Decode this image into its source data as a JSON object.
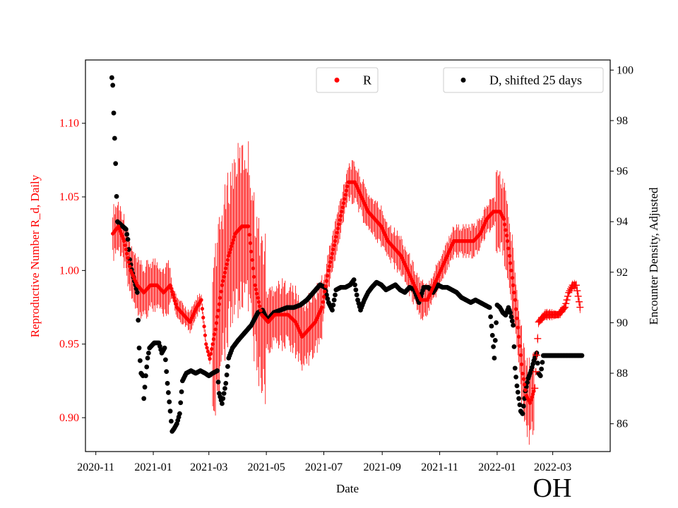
{
  "chart_data": {
    "type": "scatter",
    "xlabel": "Date",
    "ylabel_left": "Reproductive Number R_d, Daily",
    "ylabel_right": "Encounter Density, Adjusted",
    "state_label": "OH",
    "colors": {
      "R": "#ff0000",
      "D": "#000000",
      "axis": "#000000"
    },
    "x_range": [
      "2020-10-21",
      "2022-05-01"
    ],
    "x_ticks": [
      "2020-11",
      "2021-01",
      "2021-03",
      "2021-05",
      "2021-07",
      "2021-09",
      "2021-11",
      "2022-01",
      "2022-03"
    ],
    "y_left_range": [
      0.877,
      1.143
    ],
    "y_left_ticks": [
      "0.90",
      "0.95",
      "1.00",
      "1.05",
      "1.10"
    ],
    "y_right_range": [
      84.9,
      100.4
    ],
    "y_right_ticks": [
      "86",
      "88",
      "90",
      "92",
      "94",
      "96",
      "98",
      "100"
    ],
    "legend": [
      {
        "name": "R",
        "position": "top-center"
      },
      {
        "name": "D, shifted 25 days",
        "position": "top-right"
      }
    ],
    "series_R_points": [
      [
        "2020-11-19",
        1.025
      ],
      [
        "2020-11-25",
        1.03
      ],
      [
        "2020-12-01",
        1.02
      ],
      [
        "2020-12-08",
        1.0
      ],
      [
        "2020-12-15",
        0.99
      ],
      [
        "2020-12-22",
        0.985
      ],
      [
        "2020-12-29",
        0.99
      ],
      [
        "2021-01-05",
        0.99
      ],
      [
        "2021-01-12",
        0.985
      ],
      [
        "2021-01-19",
        0.99
      ],
      [
        "2021-01-26",
        0.975
      ],
      [
        "2021-02-02",
        0.97
      ],
      [
        "2021-02-09",
        0.965
      ],
      [
        "2021-02-16",
        0.975
      ],
      [
        "2021-02-21",
        0.98
      ],
      [
        "2021-02-26",
        0.95
      ],
      [
        "2021-03-02",
        0.94
      ],
      [
        "2021-03-08",
        0.96
      ],
      [
        "2021-03-15",
        0.99
      ],
      [
        "2021-03-22",
        1.01
      ],
      [
        "2021-03-29",
        1.025
      ],
      [
        "2021-04-05",
        1.03
      ],
      [
        "2021-04-12",
        1.03
      ],
      [
        "2021-04-19",
        0.99
      ],
      [
        "2021-04-26",
        0.97
      ],
      [
        "2021-05-03",
        0.965
      ],
      [
        "2021-05-10",
        0.97
      ],
      [
        "2021-05-17",
        0.97
      ],
      [
        "2021-05-24",
        0.97
      ],
      [
        "2021-06-01",
        0.965
      ],
      [
        "2021-06-08",
        0.955
      ],
      [
        "2021-06-15",
        0.96
      ],
      [
        "2021-06-22",
        0.965
      ],
      [
        "2021-06-29",
        0.975
      ],
      [
        "2021-07-06",
        1.0
      ],
      [
        "2021-07-13",
        1.02
      ],
      [
        "2021-07-20",
        1.04
      ],
      [
        "2021-07-27",
        1.06
      ],
      [
        "2021-08-03",
        1.06
      ],
      [
        "2021-08-10",
        1.05
      ],
      [
        "2021-08-17",
        1.04
      ],
      [
        "2021-08-24",
        1.035
      ],
      [
        "2021-08-31",
        1.03
      ],
      [
        "2021-09-07",
        1.02
      ],
      [
        "2021-09-14",
        1.015
      ],
      [
        "2021-09-21",
        1.01
      ],
      [
        "2021-09-28",
        1.0
      ],
      [
        "2021-10-05",
        0.99
      ],
      [
        "2021-10-12",
        0.98
      ],
      [
        "2021-10-19",
        0.98
      ],
      [
        "2021-10-26",
        0.99
      ],
      [
        "2021-11-02",
        1.0
      ],
      [
        "2021-11-09",
        1.01
      ],
      [
        "2021-11-16",
        1.02
      ],
      [
        "2021-11-23",
        1.02
      ],
      [
        "2021-11-30",
        1.02
      ],
      [
        "2021-12-07",
        1.02
      ],
      [
        "2021-12-14",
        1.025
      ],
      [
        "2021-12-21",
        1.035
      ],
      [
        "2021-12-28",
        1.04
      ],
      [
        "2022-01-04",
        1.04
      ],
      [
        "2022-01-08",
        1.035
      ],
      [
        "2022-01-12",
        1.02
      ],
      [
        "2022-01-16",
        1.0
      ],
      [
        "2022-01-20",
        0.98
      ],
      [
        "2022-01-24",
        0.955
      ],
      [
        "2022-01-28",
        0.93
      ],
      [
        "2022-02-01",
        0.915
      ],
      [
        "2022-02-05",
        0.91
      ],
      [
        "2022-02-10",
        0.92
      ],
      [
        "2022-02-14",
        0.965
      ],
      [
        "2022-02-21",
        0.97
      ],
      [
        "2022-02-28",
        0.97
      ],
      [
        "2022-03-07",
        0.97
      ],
      [
        "2022-03-14",
        0.975
      ],
      [
        "2022-03-18",
        0.985
      ],
      [
        "2022-03-22",
        0.99
      ],
      [
        "2022-03-26",
        0.99
      ],
      [
        "2022-03-30",
        0.975
      ]
    ],
    "series_D_points": [
      [
        "2020-11-18",
        99.7
      ],
      [
        "2020-11-19",
        99.4
      ],
      [
        "2020-11-20",
        98.3
      ],
      [
        "2020-11-21",
        97.3
      ],
      [
        "2020-11-22",
        96.3
      ],
      [
        "2020-11-23",
        95.0
      ],
      [
        "2020-11-24",
        94.0
      ],
      [
        "2020-11-27",
        93.9
      ],
      [
        "2020-11-30",
        93.8
      ],
      [
        "2020-12-03",
        93.7
      ],
      [
        "2020-12-05",
        93.3
      ],
      [
        "2020-12-07",
        92.5
      ],
      [
        "2020-12-09",
        92.1
      ],
      [
        "2020-12-11",
        91.8
      ],
      [
        "2020-12-13",
        91.5
      ],
      [
        "2020-12-15",
        91.2
      ],
      [
        "2020-12-17",
        89.0
      ],
      [
        "2020-12-19",
        88.0
      ],
      [
        "2020-12-21",
        87.9
      ],
      [
        "2020-12-22",
        87.0
      ],
      [
        "2020-12-24",
        87.9
      ],
      [
        "2020-12-26",
        88.6
      ],
      [
        "2020-12-28",
        89.0
      ],
      [
        "2021-01-02",
        89.2
      ],
      [
        "2021-01-07",
        89.2
      ],
      [
        "2021-01-10",
        88.8
      ],
      [
        "2021-01-13",
        89.0
      ],
      [
        "2021-01-16",
        87.6
      ],
      [
        "2021-01-19",
        86.5
      ],
      [
        "2021-01-21",
        85.7
      ],
      [
        "2021-01-23",
        85.8
      ],
      [
        "2021-01-26",
        86.0
      ],
      [
        "2021-01-29",
        86.4
      ],
      [
        "2021-02-01",
        87.7
      ],
      [
        "2021-02-05",
        88.0
      ],
      [
        "2021-02-10",
        88.1
      ],
      [
        "2021-02-15",
        88.0
      ],
      [
        "2021-02-20",
        88.1
      ],
      [
        "2021-02-25",
        88.0
      ],
      [
        "2021-03-01",
        87.9
      ],
      [
        "2021-03-05",
        88.0
      ],
      [
        "2021-03-10",
        88.1
      ],
      [
        "2021-03-12",
        87.2
      ],
      [
        "2021-03-15",
        86.8
      ],
      [
        "2021-03-19",
        87.6
      ],
      [
        "2021-03-22",
        88.6
      ],
      [
        "2021-03-26",
        89.0
      ],
      [
        "2021-04-01",
        89.3
      ],
      [
        "2021-04-08",
        89.6
      ],
      [
        "2021-04-15",
        89.9
      ],
      [
        "2021-04-22",
        90.4
      ],
      [
        "2021-04-27",
        90.5
      ],
      [
        "2021-05-02",
        90.1
      ],
      [
        "2021-05-09",
        90.4
      ],
      [
        "2021-05-16",
        90.5
      ],
      [
        "2021-05-23",
        90.6
      ],
      [
        "2021-05-30",
        90.6
      ],
      [
        "2021-06-06",
        90.7
      ],
      [
        "2021-06-13",
        90.9
      ],
      [
        "2021-06-20",
        91.2
      ],
      [
        "2021-06-27",
        91.5
      ],
      [
        "2021-07-02",
        91.4
      ],
      [
        "2021-07-06",
        90.8
      ],
      [
        "2021-07-10",
        90.5
      ],
      [
        "2021-07-14",
        91.3
      ],
      [
        "2021-07-19",
        91.4
      ],
      [
        "2021-07-24",
        91.4
      ],
      [
        "2021-07-29",
        91.5
      ],
      [
        "2021-08-02",
        91.7
      ],
      [
        "2021-08-06",
        90.9
      ],
      [
        "2021-08-09",
        90.5
      ],
      [
        "2021-08-13",
        90.9
      ],
      [
        "2021-08-17",
        91.2
      ],
      [
        "2021-08-21",
        91.4
      ],
      [
        "2021-08-26",
        91.6
      ],
      [
        "2021-08-31",
        91.5
      ],
      [
        "2021-09-05",
        91.3
      ],
      [
        "2021-09-10",
        91.4
      ],
      [
        "2021-09-15",
        91.5
      ],
      [
        "2021-09-20",
        91.3
      ],
      [
        "2021-09-25",
        91.2
      ],
      [
        "2021-09-30",
        91.4
      ],
      [
        "2021-10-05",
        91.3
      ],
      [
        "2021-10-10",
        90.8
      ],
      [
        "2021-10-15",
        91.4
      ],
      [
        "2021-10-20",
        91.4
      ],
      [
        "2021-10-25",
        91.2
      ],
      [
        "2021-10-30",
        91.5
      ],
      [
        "2021-11-04",
        91.4
      ],
      [
        "2021-11-09",
        91.4
      ],
      [
        "2021-11-14",
        91.3
      ],
      [
        "2021-11-19",
        91.2
      ],
      [
        "2021-11-24",
        91.0
      ],
      [
        "2021-11-29",
        90.9
      ],
      [
        "2021-12-04",
        90.8
      ],
      [
        "2021-12-09",
        90.9
      ],
      [
        "2021-12-14",
        90.8
      ],
      [
        "2021-12-19",
        90.7
      ],
      [
        "2021-12-24",
        90.6
      ],
      [
        "2021-12-27",
        89.5
      ],
      [
        "2021-12-29",
        88.6
      ],
      [
        "2022-01-01",
        90.7
      ],
      [
        "2022-01-04",
        90.6
      ],
      [
        "2022-01-07",
        90.4
      ],
      [
        "2022-01-10",
        90.3
      ],
      [
        "2022-01-13",
        90.6
      ],
      [
        "2022-01-15",
        90.4
      ],
      [
        "2022-01-18",
        89.9
      ],
      [
        "2022-01-20",
        88.2
      ],
      [
        "2022-01-22",
        87.5
      ],
      [
        "2022-01-24",
        87.0
      ],
      [
        "2022-01-26",
        86.5
      ],
      [
        "2022-01-28",
        86.4
      ],
      [
        "2022-01-31",
        87.3
      ],
      [
        "2022-02-03",
        87.8
      ],
      [
        "2022-02-06",
        88.1
      ],
      [
        "2022-02-09",
        88.5
      ],
      [
        "2022-02-12",
        88.8
      ],
      [
        "2022-02-14",
        88.0
      ],
      [
        "2022-02-16",
        87.9
      ],
      [
        "2022-02-19",
        88.7
      ],
      [
        "2022-02-26",
        88.7
      ],
      [
        "2022-03-05",
        88.7
      ],
      [
        "2022-03-12",
        88.7
      ],
      [
        "2022-03-19",
        88.7
      ],
      [
        "2022-03-26",
        88.7
      ],
      [
        "2022-04-01",
        88.7
      ]
    ]
  }
}
